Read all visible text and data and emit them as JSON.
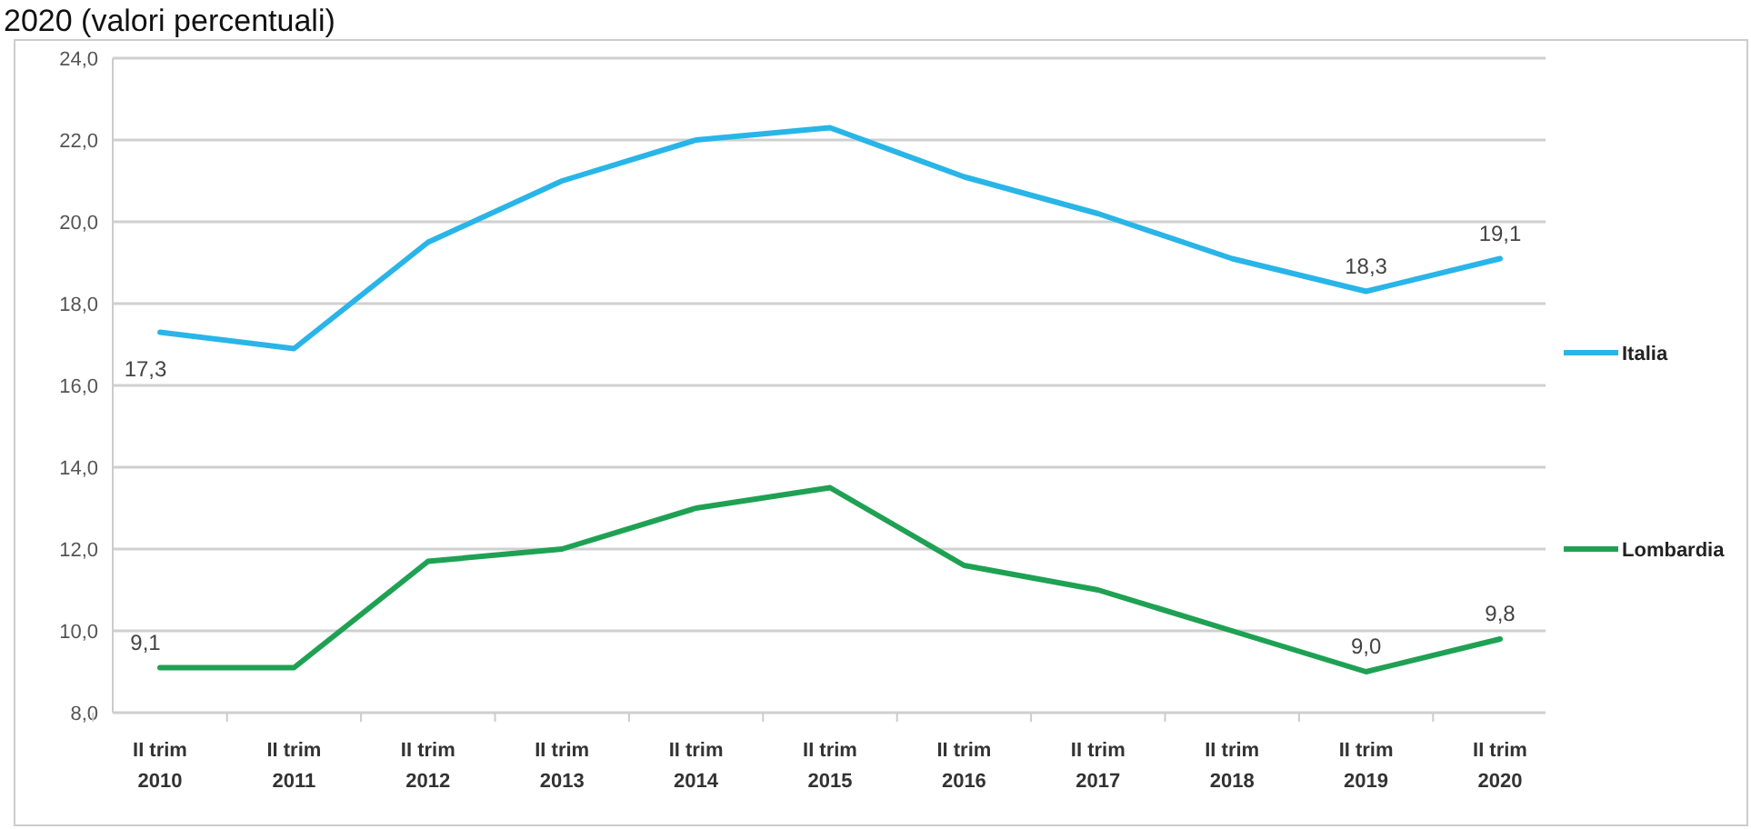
{
  "chart_data": {
    "type": "line",
    "title": "2020 (valori percentuali)",
    "categories": [
      "II trim 2010",
      "II trim 2011",
      "II trim 2012",
      "II trim 2013",
      "II trim 2014",
      "II trim 2015",
      "II trim 2016",
      "II trim 2017",
      "II trim 2018",
      "II trim 2019",
      "II trim 2020"
    ],
    "series": [
      {
        "name": "Italia",
        "color": "#29b5e8",
        "values": [
          17.3,
          16.9,
          19.5,
          21.0,
          22.0,
          22.3,
          21.1,
          20.2,
          19.1,
          18.3,
          19.1
        ],
        "value_labels": [
          "17,3",
          null,
          null,
          null,
          null,
          null,
          null,
          null,
          null,
          "18,3",
          "19,1"
        ]
      },
      {
        "name": "Lombardia",
        "color": "#1fa154",
        "values": [
          9.1,
          9.1,
          11.7,
          12.0,
          13.0,
          13.5,
          11.6,
          11.0,
          10.0,
          9.0,
          9.8
        ],
        "value_labels": [
          "9,1",
          null,
          null,
          null,
          null,
          null,
          null,
          null,
          null,
          "9,0",
          "9,8"
        ]
      }
    ],
    "ylim": [
      8,
      24
    ],
    "yticks": [
      {
        "value": 8,
        "label": "8,0"
      },
      {
        "value": 10,
        "label": "10,0"
      },
      {
        "value": 12,
        "label": "12,0"
      },
      {
        "value": 14,
        "label": "14,0"
      },
      {
        "value": 16,
        "label": "16,0"
      },
      {
        "value": 18,
        "label": "18,0"
      },
      {
        "value": 20,
        "label": "20,0"
      },
      {
        "value": 22,
        "label": "22,0"
      },
      {
        "value": 24,
        "label": "24,0"
      }
    ],
    "grid": "y",
    "legend": "right",
    "marker": "none",
    "line_style": "solid"
  }
}
